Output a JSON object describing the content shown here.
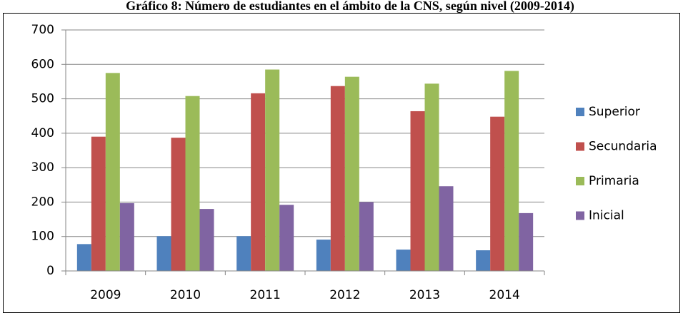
{
  "chart_data": {
    "type": "bar",
    "title": "Gráfico 8: Número de estudiantes en el ámbito de la CNS, según nivel (2009-2014)",
    "categories": [
      "2009",
      "2010",
      "2011",
      "2012",
      "2013",
      "2014"
    ],
    "series": [
      {
        "name": "Superior",
        "color": "#4f81bd",
        "values": [
          78,
          101,
          101,
          91,
          62,
          60
        ]
      },
      {
        "name": "Secundaria",
        "color": "#c0504d",
        "values": [
          390,
          387,
          516,
          537,
          464,
          448
        ]
      },
      {
        "name": "Primaria",
        "color": "#9bbb59",
        "values": [
          575,
          508,
          585,
          564,
          544,
          581
        ]
      },
      {
        "name": "Inicial",
        "color": "#8064a2",
        "values": [
          197,
          180,
          192,
          200,
          246,
          168
        ]
      }
    ],
    "ylim": [
      0,
      700
    ],
    "yticks": [
      0,
      100,
      200,
      300,
      400,
      500,
      600,
      700
    ],
    "grid": true,
    "legend": "right"
  }
}
